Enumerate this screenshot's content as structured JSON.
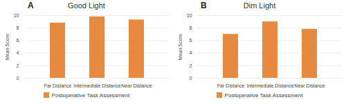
{
  "chart_data": [
    {
      "type": "bar",
      "title": "Good Light",
      "annotations": [
        "A"
      ],
      "categories": [
        "Far Distance",
        "Intermediate Distance",
        "Near Distance"
      ],
      "series": [
        {
          "name": "Postoperative Task Assessment",
          "color": "#e58a3f",
          "values": [
            8.8,
            9.8,
            9.3
          ]
        }
      ],
      "y_label": "Mean Score",
      "ylim": [
        0,
        10
      ],
      "yticks": [
        0,
        2,
        4,
        6,
        8,
        10
      ],
      "grid": true,
      "legend": "bottom"
    },
    {
      "type": "bar",
      "title": "Dim Light",
      "annotations": [
        "B"
      ],
      "categories": [
        "Far Distance",
        "Intermediate Distance",
        "Near Distance"
      ],
      "series": [
        {
          "name": "Postoperative Task Assessment",
          "color": "#e58a3f",
          "values": [
            7.0,
            9.0,
            7.8
          ]
        }
      ],
      "y_label": "Mean Score",
      "ylim": [
        0,
        10
      ],
      "yticks": [
        0,
        2,
        4,
        6,
        8,
        10
      ],
      "grid": true,
      "legend": "bottom"
    }
  ]
}
